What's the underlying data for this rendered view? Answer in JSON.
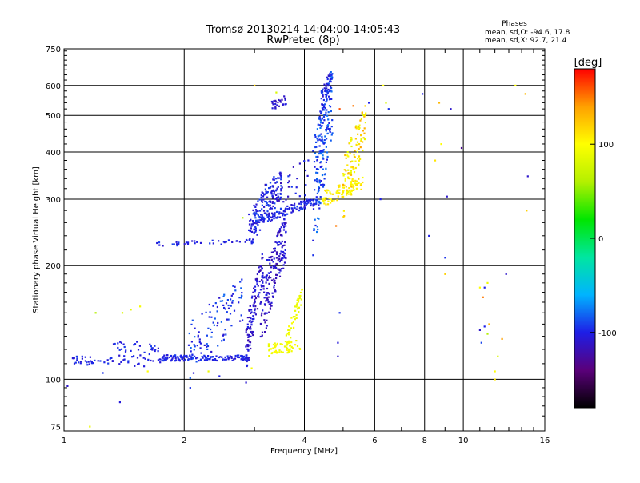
{
  "chart_data": {
    "type": "scatter",
    "title": "Tromsø 20130214 14:04:00-14:05:43",
    "subtitle": "RwPretec (8p)",
    "xlabel": "Frequency [MHz]",
    "ylabel": "Stationary phase Virtual Height [km]",
    "x_scale": "log",
    "y_scale": "log",
    "xlim": [
      1,
      16
    ],
    "ylim": [
      73,
      750
    ],
    "x_ticks": [
      1,
      2,
      4,
      6,
      8,
      10,
      16
    ],
    "x_tick_labels": [
      "1",
      "2",
      "4",
      "6",
      "8",
      "10",
      "16"
    ],
    "y_ticks": [
      75,
      100,
      200,
      300,
      400,
      500,
      600,
      750
    ],
    "y_tick_labels": [
      "75",
      "100",
      "200",
      "300",
      "400",
      "500",
      "600",
      "750"
    ],
    "grid": true,
    "phase_info": {
      "heading": "Phases",
      "line_o": "mean, sd,O: -94.6, 17.8",
      "line_x": "mean, sd,X:  92.7, 21.4"
    },
    "colorbar": {
      "label": "[deg]",
      "range": [
        -180,
        180
      ],
      "ticks": [
        100,
        0,
        -100
      ],
      "tick_labels": [
        "100",
        "0",
        "-100"
      ],
      "stops": [
        "#000000",
        "#5a007a",
        "#1e1ee6",
        "#00b4ff",
        "#00e6a0",
        "#00e600",
        "#b4f000",
        "#ffff00",
        "#ffa000",
        "#ff0000"
      ]
    },
    "segments": [
      {
        "f0": 1.05,
        "f1": 1.3,
        "h0": 112,
        "h1": 112,
        "n": 30,
        "spread": 3,
        "phase": -100,
        "pj": 10
      },
      {
        "f0": 1.3,
        "f1": 1.75,
        "h0": 120,
        "h1": 114,
        "n": 60,
        "spread": 9,
        "phase": -100,
        "pj": 10
      },
      {
        "f0": 1.75,
        "f1": 2.9,
        "h0": 114,
        "h1": 114,
        "n": 140,
        "spread": 2,
        "phase": -100,
        "pj": 8
      },
      {
        "f0": 2.05,
        "f1": 2.8,
        "h0": 120,
        "h1": 165,
        "n": 100,
        "spread": 22,
        "phase": -95,
        "pj": 15
      },
      {
        "f0": 2.85,
        "f1": 3.15,
        "h0": 116,
        "h1": 200,
        "n": 120,
        "spread": 20,
        "phase": -110,
        "pj": 12
      },
      {
        "f0": 3.1,
        "f1": 3.6,
        "h0": 150,
        "h1": 240,
        "n": 180,
        "spread": 35,
        "phase": -110,
        "pj": 12
      },
      {
        "f0": 3.25,
        "f1": 3.9,
        "h0": 120,
        "h1": 122,
        "n": 50,
        "spread": 5,
        "phase": 95,
        "pj": 8
      },
      {
        "f0": 3.6,
        "f1": 3.95,
        "h0": 125,
        "h1": 168,
        "n": 50,
        "spread": 8,
        "phase": 92,
        "pj": 8
      },
      {
        "f0": 1.7,
        "f1": 3.0,
        "h0": 228,
        "h1": 232,
        "n": 40,
        "spread": 3,
        "phase": -100,
        "pj": 10
      },
      {
        "f0": 2.9,
        "f1": 3.5,
        "h0": 250,
        "h1": 330,
        "n": 150,
        "spread": 30,
        "phase": -100,
        "pj": 12
      },
      {
        "f0": 3.0,
        "f1": 4.3,
        "h0": 260,
        "h1": 298,
        "n": 130,
        "spread": 8,
        "phase": -100,
        "pj": 10
      },
      {
        "f0": 3.1,
        "f1": 4.1,
        "h0": 290,
        "h1": 350,
        "n": 40,
        "spread": 40,
        "phase": -105,
        "pj": 15
      },
      {
        "f0": 4.2,
        "f1": 4.7,
        "h0": 300,
        "h1": 560,
        "n": 200,
        "spread": 120,
        "phase": -90,
        "pj": 15
      },
      {
        "f0": 4.4,
        "f1": 4.7,
        "h0": 540,
        "h1": 640,
        "n": 40,
        "spread": 40,
        "phase": -100,
        "pj": 15
      },
      {
        "f0": 4.4,
        "f1": 5.6,
        "h0": 300,
        "h1": 330,
        "n": 90,
        "spread": 14,
        "phase": 105,
        "pj": 12
      },
      {
        "f0": 5.0,
        "f1": 5.7,
        "h0": 320,
        "h1": 480,
        "n": 100,
        "spread": 60,
        "phase": 110,
        "pj": 30
      },
      {
        "f0": 3.3,
        "f1": 3.6,
        "h0": 530,
        "h1": 550,
        "n": 25,
        "spread": 15,
        "phase": -110,
        "pj": 10
      }
    ],
    "scatter_points": [
      {
        "f": 1.0,
        "h": 97,
        "p": -100
      },
      {
        "f": 1.02,
        "h": 96,
        "p": -110
      },
      {
        "f": 1.38,
        "h": 87,
        "p": -105
      },
      {
        "f": 1.16,
        "h": 75,
        "p": 90
      },
      {
        "f": 1.25,
        "h": 104,
        "p": -95
      },
      {
        "f": 1.4,
        "h": 150,
        "p": 80
      },
      {
        "f": 1.47,
        "h": 153,
        "p": 85
      },
      {
        "f": 1.55,
        "h": 156,
        "p": 95
      },
      {
        "f": 1.62,
        "h": 105,
        "p": 100
      },
      {
        "f": 1.2,
        "h": 150,
        "p": 60
      },
      {
        "f": 2.07,
        "h": 95,
        "p": -95
      },
      {
        "f": 2.3,
        "h": 105,
        "p": 90
      },
      {
        "f": 2.45,
        "h": 102,
        "p": -100
      },
      {
        "f": 2.95,
        "h": 107,
        "p": 95
      },
      {
        "f": 2.8,
        "h": 268,
        "p": 60
      },
      {
        "f": 3.4,
        "h": 575,
        "p": 80
      },
      {
        "f": 3.0,
        "h": 600,
        "p": 120
      },
      {
        "f": 4.85,
        "h": 125,
        "p": -105
      },
      {
        "f": 4.85,
        "h": 115,
        "p": -110
      },
      {
        "f": 4.9,
        "h": 150,
        "p": -95
      },
      {
        "f": 4.8,
        "h": 255,
        "p": 150
      },
      {
        "f": 4.9,
        "h": 520,
        "p": 160
      },
      {
        "f": 5.3,
        "h": 530,
        "p": 150
      },
      {
        "f": 5.8,
        "h": 540,
        "p": -100
      },
      {
        "f": 6.2,
        "h": 300,
        "p": -100
      },
      {
        "f": 6.3,
        "h": 600,
        "p": 100
      },
      {
        "f": 6.5,
        "h": 520,
        "p": -95
      },
      {
        "f": 6.4,
        "h": 540,
        "p": 80
      },
      {
        "f": 7.9,
        "h": 570,
        "p": -100
      },
      {
        "f": 8.2,
        "h": 240,
        "p": -100
      },
      {
        "f": 8.5,
        "h": 380,
        "p": 110
      },
      {
        "f": 8.7,
        "h": 540,
        "p": 130
      },
      {
        "f": 8.8,
        "h": 420,
        "p": 100
      },
      {
        "f": 9.1,
        "h": 305,
        "p": -110
      },
      {
        "f": 9.0,
        "h": 210,
        "p": -95
      },
      {
        "f": 9.0,
        "h": 190,
        "p": 120
      },
      {
        "f": 9.3,
        "h": 520,
        "p": -110
      },
      {
        "f": 9.9,
        "h": 410,
        "p": -130
      },
      {
        "f": 11.0,
        "h": 175,
        "p": 100
      },
      {
        "f": 11.2,
        "h": 165,
        "p": 150
      },
      {
        "f": 11.5,
        "h": 180,
        "p": 90
      },
      {
        "f": 11.3,
        "h": 175,
        "p": -100
      },
      {
        "f": 11.0,
        "h": 135,
        "p": -110
      },
      {
        "f": 11.3,
        "h": 138,
        "p": -100
      },
      {
        "f": 11.5,
        "h": 132,
        "p": 60
      },
      {
        "f": 11.1,
        "h": 125,
        "p": -90
      },
      {
        "f": 11.6,
        "h": 140,
        "p": 130
      },
      {
        "f": 12.0,
        "h": 100,
        "p": 110
      },
      {
        "f": 12.0,
        "h": 105,
        "p": 100
      },
      {
        "f": 12.5,
        "h": 128,
        "p": 140
      },
      {
        "f": 12.8,
        "h": 190,
        "p": -110
      },
      {
        "f": 13.5,
        "h": 600,
        "p": 100
      },
      {
        "f": 14.3,
        "h": 570,
        "p": 130
      },
      {
        "f": 14.5,
        "h": 345,
        "p": -110
      },
      {
        "f": 14.4,
        "h": 280,
        "p": 120
      },
      {
        "f": 12.2,
        "h": 115,
        "p": 80
      }
    ]
  }
}
